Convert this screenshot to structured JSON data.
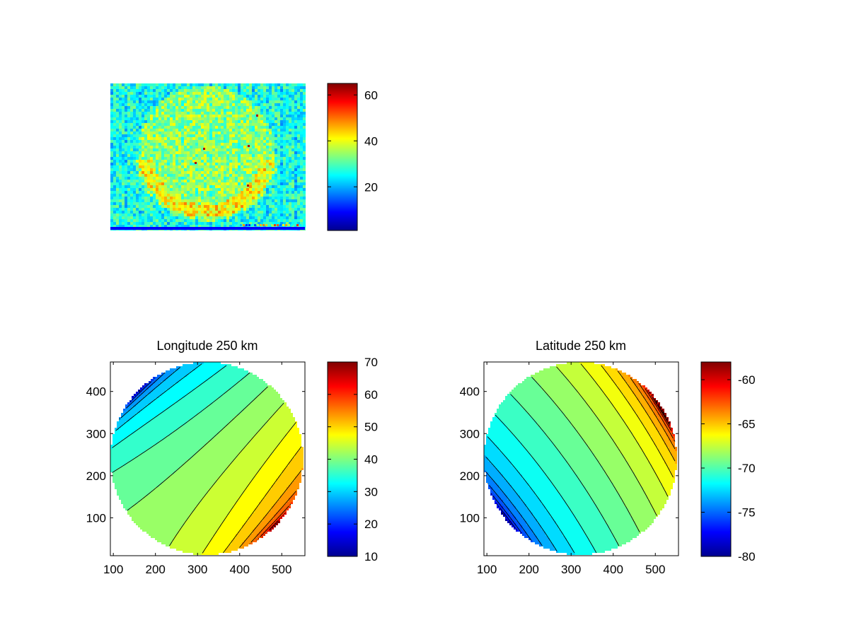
{
  "chart_data": [
    {
      "type": "heatmap",
      "title": "",
      "colormap": "jet",
      "axes_visible": false,
      "colorbar": {
        "range": [
          1,
          65
        ],
        "ticks": [
          20,
          40,
          60
        ],
        "tick_labels": [
          "20",
          "40",
          "60"
        ]
      }
    },
    {
      "type": "heatmap",
      "title": "Longitude 250 km",
      "colormap": "jet",
      "contours": true,
      "xlim": [
        93,
        555
      ],
      "ylim": [
        10,
        470
      ],
      "xticks": [
        100,
        200,
        300,
        400,
        500
      ],
      "xtick_labels": [
        "100",
        "200",
        "300",
        "400",
        "500"
      ],
      "yticks": [
        100,
        200,
        300,
        400
      ],
      "ytick_labels": [
        "100",
        "200",
        "300",
        "400"
      ],
      "disk": {
        "center": [
          322,
          241
        ],
        "radius": 229
      },
      "value_range": [
        10,
        70
      ],
      "contour_levels": [
        13,
        16,
        19,
        22,
        25,
        28,
        31,
        34,
        37,
        40,
        43,
        46,
        49,
        52,
        55,
        58,
        61,
        64,
        67
      ],
      "colorbar": {
        "range": [
          10,
          70
        ],
        "ticks": [
          10,
          20,
          30,
          40,
          50,
          60,
          70
        ],
        "tick_labels": [
          "10",
          "20",
          "30",
          "40",
          "50",
          "60",
          "70"
        ]
      }
    },
    {
      "type": "heatmap",
      "title": "Latitude 250 km",
      "colormap": "jet",
      "contours": true,
      "xlim": [
        93,
        555
      ],
      "ylim": [
        10,
        470
      ],
      "xticks": [
        100,
        200,
        300,
        400,
        500
      ],
      "xtick_labels": [
        "100",
        "200",
        "300",
        "400",
        "500"
      ],
      "yticks": [
        100,
        200,
        300,
        400
      ],
      "ytick_labels": [
        "100",
        "200",
        "300",
        "400"
      ],
      "disk": {
        "center": [
          322,
          241
        ],
        "radius": 229
      },
      "value_range": [
        -80,
        -58
      ],
      "contour_levels": [
        -79,
        -78,
        -77,
        -76,
        -75,
        -74,
        -73,
        -72,
        -71,
        -70,
        -69,
        -68,
        -67,
        -66,
        -65,
        -64,
        -63,
        -62,
        -61,
        -60,
        -59
      ],
      "colorbar": {
        "range": [
          -80,
          -58
        ],
        "ticks": [
          -80,
          -75,
          -70,
          -65,
          -60
        ],
        "tick_labels": [
          "-80",
          "-75",
          "-70",
          "-65",
          "-60"
        ]
      }
    }
  ]
}
